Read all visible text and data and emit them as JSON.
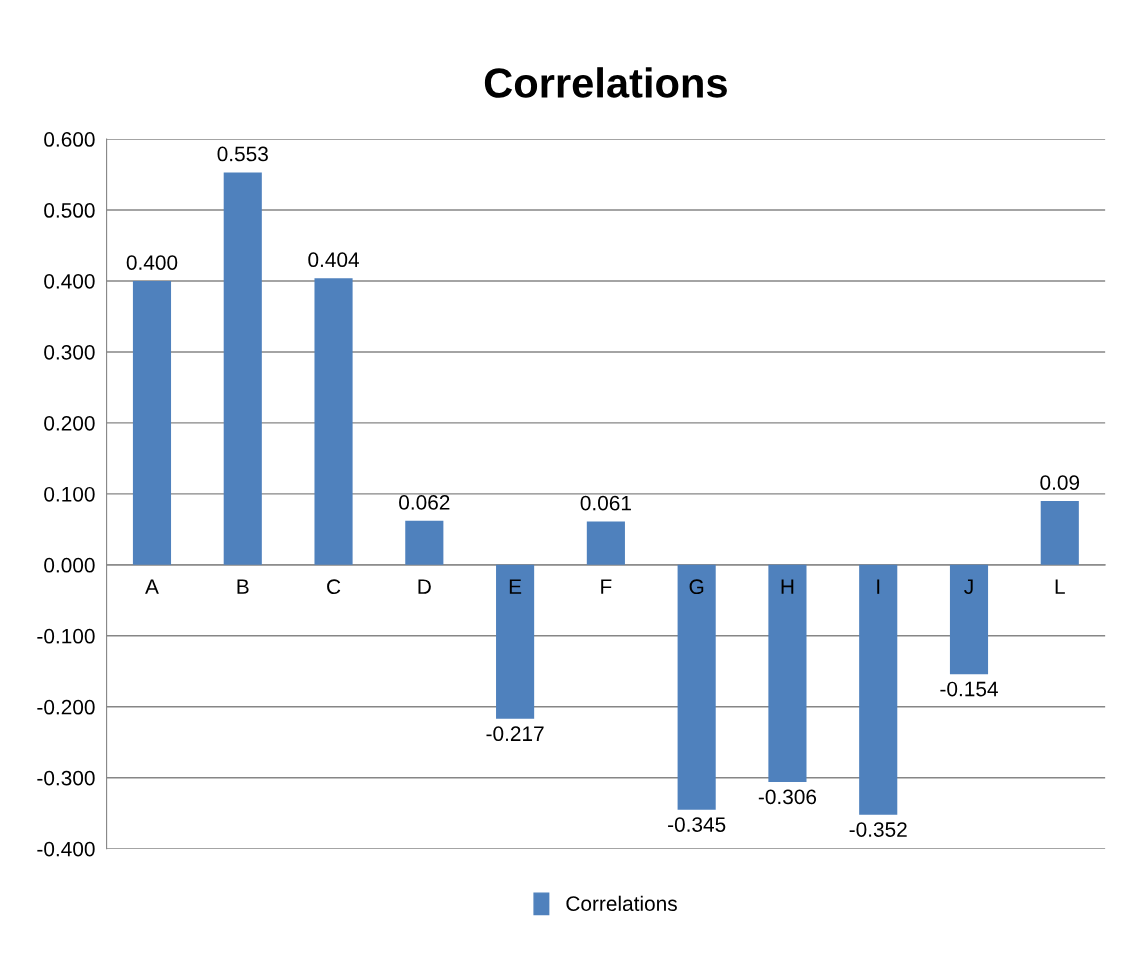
{
  "chart_data": {
    "type": "bar",
    "title": "Correlations",
    "categories": [
      "A",
      "B",
      "C",
      "D",
      "E",
      "F",
      "G",
      "H",
      "I",
      "J",
      "L"
    ],
    "series": [
      {
        "name": "Correlations",
        "color": "#4f81bd",
        "values": [
          0.4,
          0.553,
          0.404,
          0.062,
          -0.217,
          0.061,
          -0.345,
          -0.306,
          -0.352,
          -0.154,
          0.09
        ],
        "value_labels": [
          "0.400",
          "0.553",
          "0.404",
          "0.062",
          "-0.217",
          "0.061",
          "-0.345",
          "-0.306",
          "-0.352",
          "-0.154",
          "0.09"
        ]
      }
    ],
    "ylim": [
      -0.4,
      0.6
    ],
    "yticks": [
      {
        "value": -0.4,
        "label": "-0.400"
      },
      {
        "value": -0.3,
        "label": "-0.300"
      },
      {
        "value": -0.2,
        "label": "-0.200"
      },
      {
        "value": -0.1,
        "label": "-0.100"
      },
      {
        "value": 0,
        "label": "0.000"
      },
      {
        "value": 0.1,
        "label": "0.100"
      },
      {
        "value": 0.2,
        "label": "0.200"
      },
      {
        "value": 0.3,
        "label": "0.300"
      },
      {
        "value": 0.4,
        "label": "0.400"
      },
      {
        "value": 0.5,
        "label": "0.500"
      },
      {
        "value": 0.6,
        "label": "0.600"
      }
    ],
    "grid": "y",
    "legend": "bottom"
  }
}
